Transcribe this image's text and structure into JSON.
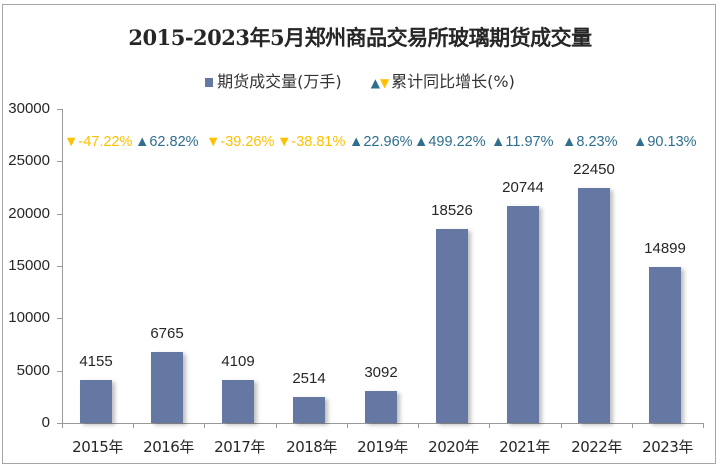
{
  "chart_data": {
    "type": "bar",
    "title": "2015-2023年5月郑州商品交易所玻璃期货成交量",
    "legend": [
      {
        "label": "期货成交量(万手)",
        "marker": "square",
        "color": "#6577a3"
      },
      {
        "label": "累计同比增长(%)",
        "marker": "triangle-up-down",
        "colors": [
          "#2e6e8e",
          "#ffc000"
        ]
      }
    ],
    "categories": [
      "2015年",
      "2016年",
      "2017年",
      "2018年",
      "2019年",
      "2020年",
      "2021年",
      "2022年",
      "2023年"
    ],
    "series": [
      {
        "name": "期货成交量(万手)",
        "values": [
          4155,
          6765,
          4109,
          2514,
          3092,
          18526,
          20744,
          22450,
          14899
        ]
      },
      {
        "name": "累计同比增长(%)",
        "values": [
          -47.22,
          62.82,
          -39.26,
          -38.81,
          22.96,
          499.22,
          11.97,
          8.23,
          90.13
        ]
      }
    ],
    "growth_labels": [
      "-47.22%",
      "62.82%",
      "-39.26%",
      "-38.81%",
      "22.96%",
      "499.22%",
      "11.97%",
      "8.23%",
      "90.13%"
    ],
    "xlabel": "",
    "ylabel": "",
    "ylim": [
      0,
      30000
    ],
    "yticks": [
      "30000",
      "25000",
      "20000",
      "15000",
      "10000",
      "5000",
      "0"
    ],
    "grid": false,
    "legend_position": "top",
    "colors": {
      "bar": "#6577a3",
      "up": "#2e6e8e",
      "down": "#ffc000"
    }
  },
  "legend_labels": {
    "volume": "期货成交量(万手)",
    "growth": "累计同比增长(%)"
  }
}
